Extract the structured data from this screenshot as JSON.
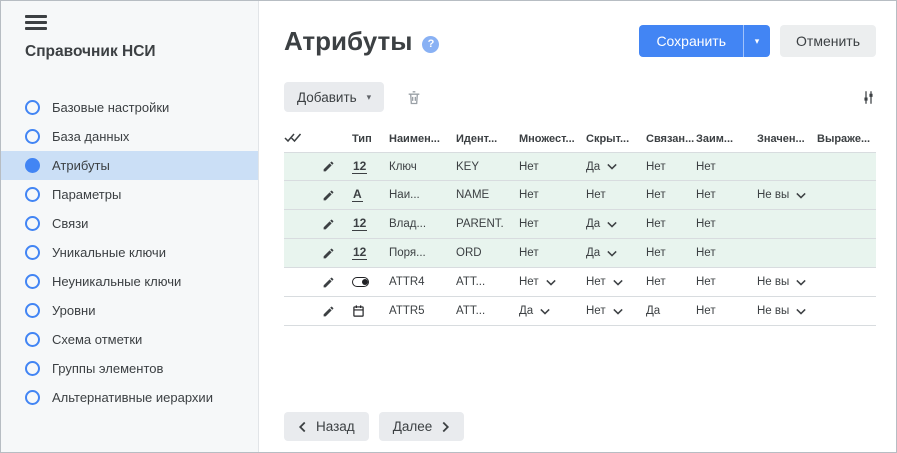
{
  "colors": {
    "accent_blue": "#4285f4",
    "selected_item_bg": "#cbdff6",
    "row_highlight_green": "#e8f4ee"
  },
  "sidebar": {
    "title": "Справочник НСИ",
    "items": [
      {
        "label": "Базовые настройки",
        "selected": false
      },
      {
        "label": "База данных",
        "selected": false
      },
      {
        "label": "Атрибуты",
        "selected": true
      },
      {
        "label": "Параметры",
        "selected": false
      },
      {
        "label": "Связи",
        "selected": false
      },
      {
        "label": "Уникальные ключи",
        "selected": false
      },
      {
        "label": "Неуникальные ключи",
        "selected": false
      },
      {
        "label": "Уровни",
        "selected": false
      },
      {
        "label": "Схема отметки",
        "selected": false
      },
      {
        "label": "Группы элементов",
        "selected": false
      },
      {
        "label": "Альтернативные иерархии",
        "selected": false
      }
    ]
  },
  "header": {
    "title": "Атрибуты",
    "save_label": "Сохранить",
    "cancel_label": "Отменить"
  },
  "toolbar": {
    "add_label": "Добавить"
  },
  "icons": {
    "help_glyph": "?",
    "caret_down": "▾"
  },
  "table": {
    "columns": [
      {
        "key": "select",
        "label": ""
      },
      {
        "key": "edit",
        "label": ""
      },
      {
        "key": "type",
        "label": "Тип"
      },
      {
        "key": "name",
        "label": "Наимен..."
      },
      {
        "key": "identifier",
        "label": "Идент..."
      },
      {
        "key": "multiple",
        "label": "Множест..."
      },
      {
        "key": "hidden",
        "label": "Скрыт..."
      },
      {
        "key": "linked",
        "label": "Связан..."
      },
      {
        "key": "borrowed",
        "label": "Заим..."
      },
      {
        "key": "value",
        "label": "Значен..."
      },
      {
        "key": "expression",
        "label": "Выраже..."
      }
    ],
    "rows": [
      {
        "highlight": true,
        "type_kind": "number",
        "type_glyph": "12",
        "name": "Ключ",
        "identifier": "KEY",
        "multiple": "Нет",
        "multiple_dropdown": false,
        "hidden": "Да",
        "hidden_dropdown": true,
        "linked": "Нет",
        "borrowed": "Нет",
        "value": "",
        "value_dropdown": false,
        "expression": ""
      },
      {
        "highlight": true,
        "type_kind": "text",
        "type_glyph": "A",
        "name": "Наи...",
        "identifier": "NAME",
        "multiple": "Нет",
        "multiple_dropdown": false,
        "hidden": "Нет",
        "hidden_dropdown": false,
        "linked": "Нет",
        "borrowed": "Нет",
        "value": "Не вы",
        "value_dropdown": true,
        "expression": ""
      },
      {
        "highlight": true,
        "type_kind": "number",
        "type_glyph": "12",
        "name": "Влад...",
        "identifier": "PARENT.",
        "multiple": "Нет",
        "multiple_dropdown": false,
        "hidden": "Да",
        "hidden_dropdown": true,
        "linked": "Нет",
        "borrowed": "Нет",
        "value": "",
        "value_dropdown": false,
        "expression": ""
      },
      {
        "highlight": true,
        "type_kind": "number",
        "type_glyph": "12",
        "name": "Поря...",
        "identifier": "ORD",
        "multiple": "Нет",
        "multiple_dropdown": false,
        "hidden": "Да",
        "hidden_dropdown": true,
        "linked": "Нет",
        "borrowed": "Нет",
        "value": "",
        "value_dropdown": false,
        "expression": ""
      },
      {
        "highlight": false,
        "type_kind": "boolean",
        "type_glyph": "",
        "name": "ATTR4",
        "identifier": "ATT...",
        "multiple": "Нет",
        "multiple_dropdown": true,
        "hidden": "Нет",
        "hidden_dropdown": true,
        "linked": "Нет",
        "borrowed": "Нет",
        "value": "Не вы",
        "value_dropdown": true,
        "expression": ""
      },
      {
        "highlight": false,
        "type_kind": "date",
        "type_glyph": "",
        "name": "ATTR5",
        "identifier": "ATT...",
        "multiple": "Да",
        "multiple_dropdown": true,
        "hidden": "Нет",
        "hidden_dropdown": true,
        "linked": "Да",
        "borrowed": "Нет",
        "value": "Не вы",
        "value_dropdown": true,
        "expression": ""
      }
    ]
  },
  "footer": {
    "back_label": "Назад",
    "next_label": "Далее"
  }
}
